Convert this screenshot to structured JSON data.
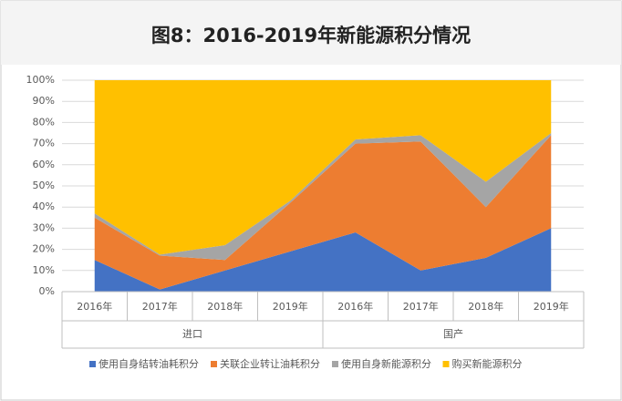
{
  "chart_data": {
    "type": "stacked_area",
    "title": "图8：2016-2019年新能源积分情况",
    "groups": [
      {
        "name": "进口",
        "categories": [
          "2016年",
          "2017年",
          "2018年",
          "2019年"
        ]
      },
      {
        "name": "国产",
        "categories": [
          "2016年",
          "2017年",
          "2018年",
          "2019年"
        ]
      }
    ],
    "series": [
      {
        "name": "使用自身结转油耗积分",
        "color": "#4472c4",
        "values": [
          15,
          1,
          10,
          19,
          28,
          10,
          16,
          30
        ]
      },
      {
        "name": "关联企业转让油耗积分",
        "color": "#ed7d31",
        "values": [
          20,
          16,
          5,
          23,
          42,
          61,
          24,
          44
        ]
      },
      {
        "name": "使用自身新能源积分",
        "color": "#a5a5a5",
        "values": [
          2,
          0.5,
          7,
          1,
          2,
          3,
          12,
          1
        ]
      },
      {
        "name": "购买新能源积分",
        "color": "#ffc000",
        "values": [
          63,
          82.5,
          78,
          57,
          28,
          26,
          48,
          25
        ]
      }
    ],
    "ylim": [
      0,
      100
    ],
    "yticks": [
      {
        "value": 0,
        "label": "0%"
      },
      {
        "value": 10,
        "label": "10%"
      },
      {
        "value": 20,
        "label": "20%"
      },
      {
        "value": 30,
        "label": "30%"
      },
      {
        "value": 40,
        "label": "40%"
      },
      {
        "value": 50,
        "label": "50%"
      },
      {
        "value": 60,
        "label": "60%"
      },
      {
        "value": 70,
        "label": "70%"
      },
      {
        "value": 80,
        "label": "80%"
      },
      {
        "value": 90,
        "label": "90%"
      },
      {
        "value": 100,
        "label": "100%"
      }
    ],
    "grid": true
  }
}
